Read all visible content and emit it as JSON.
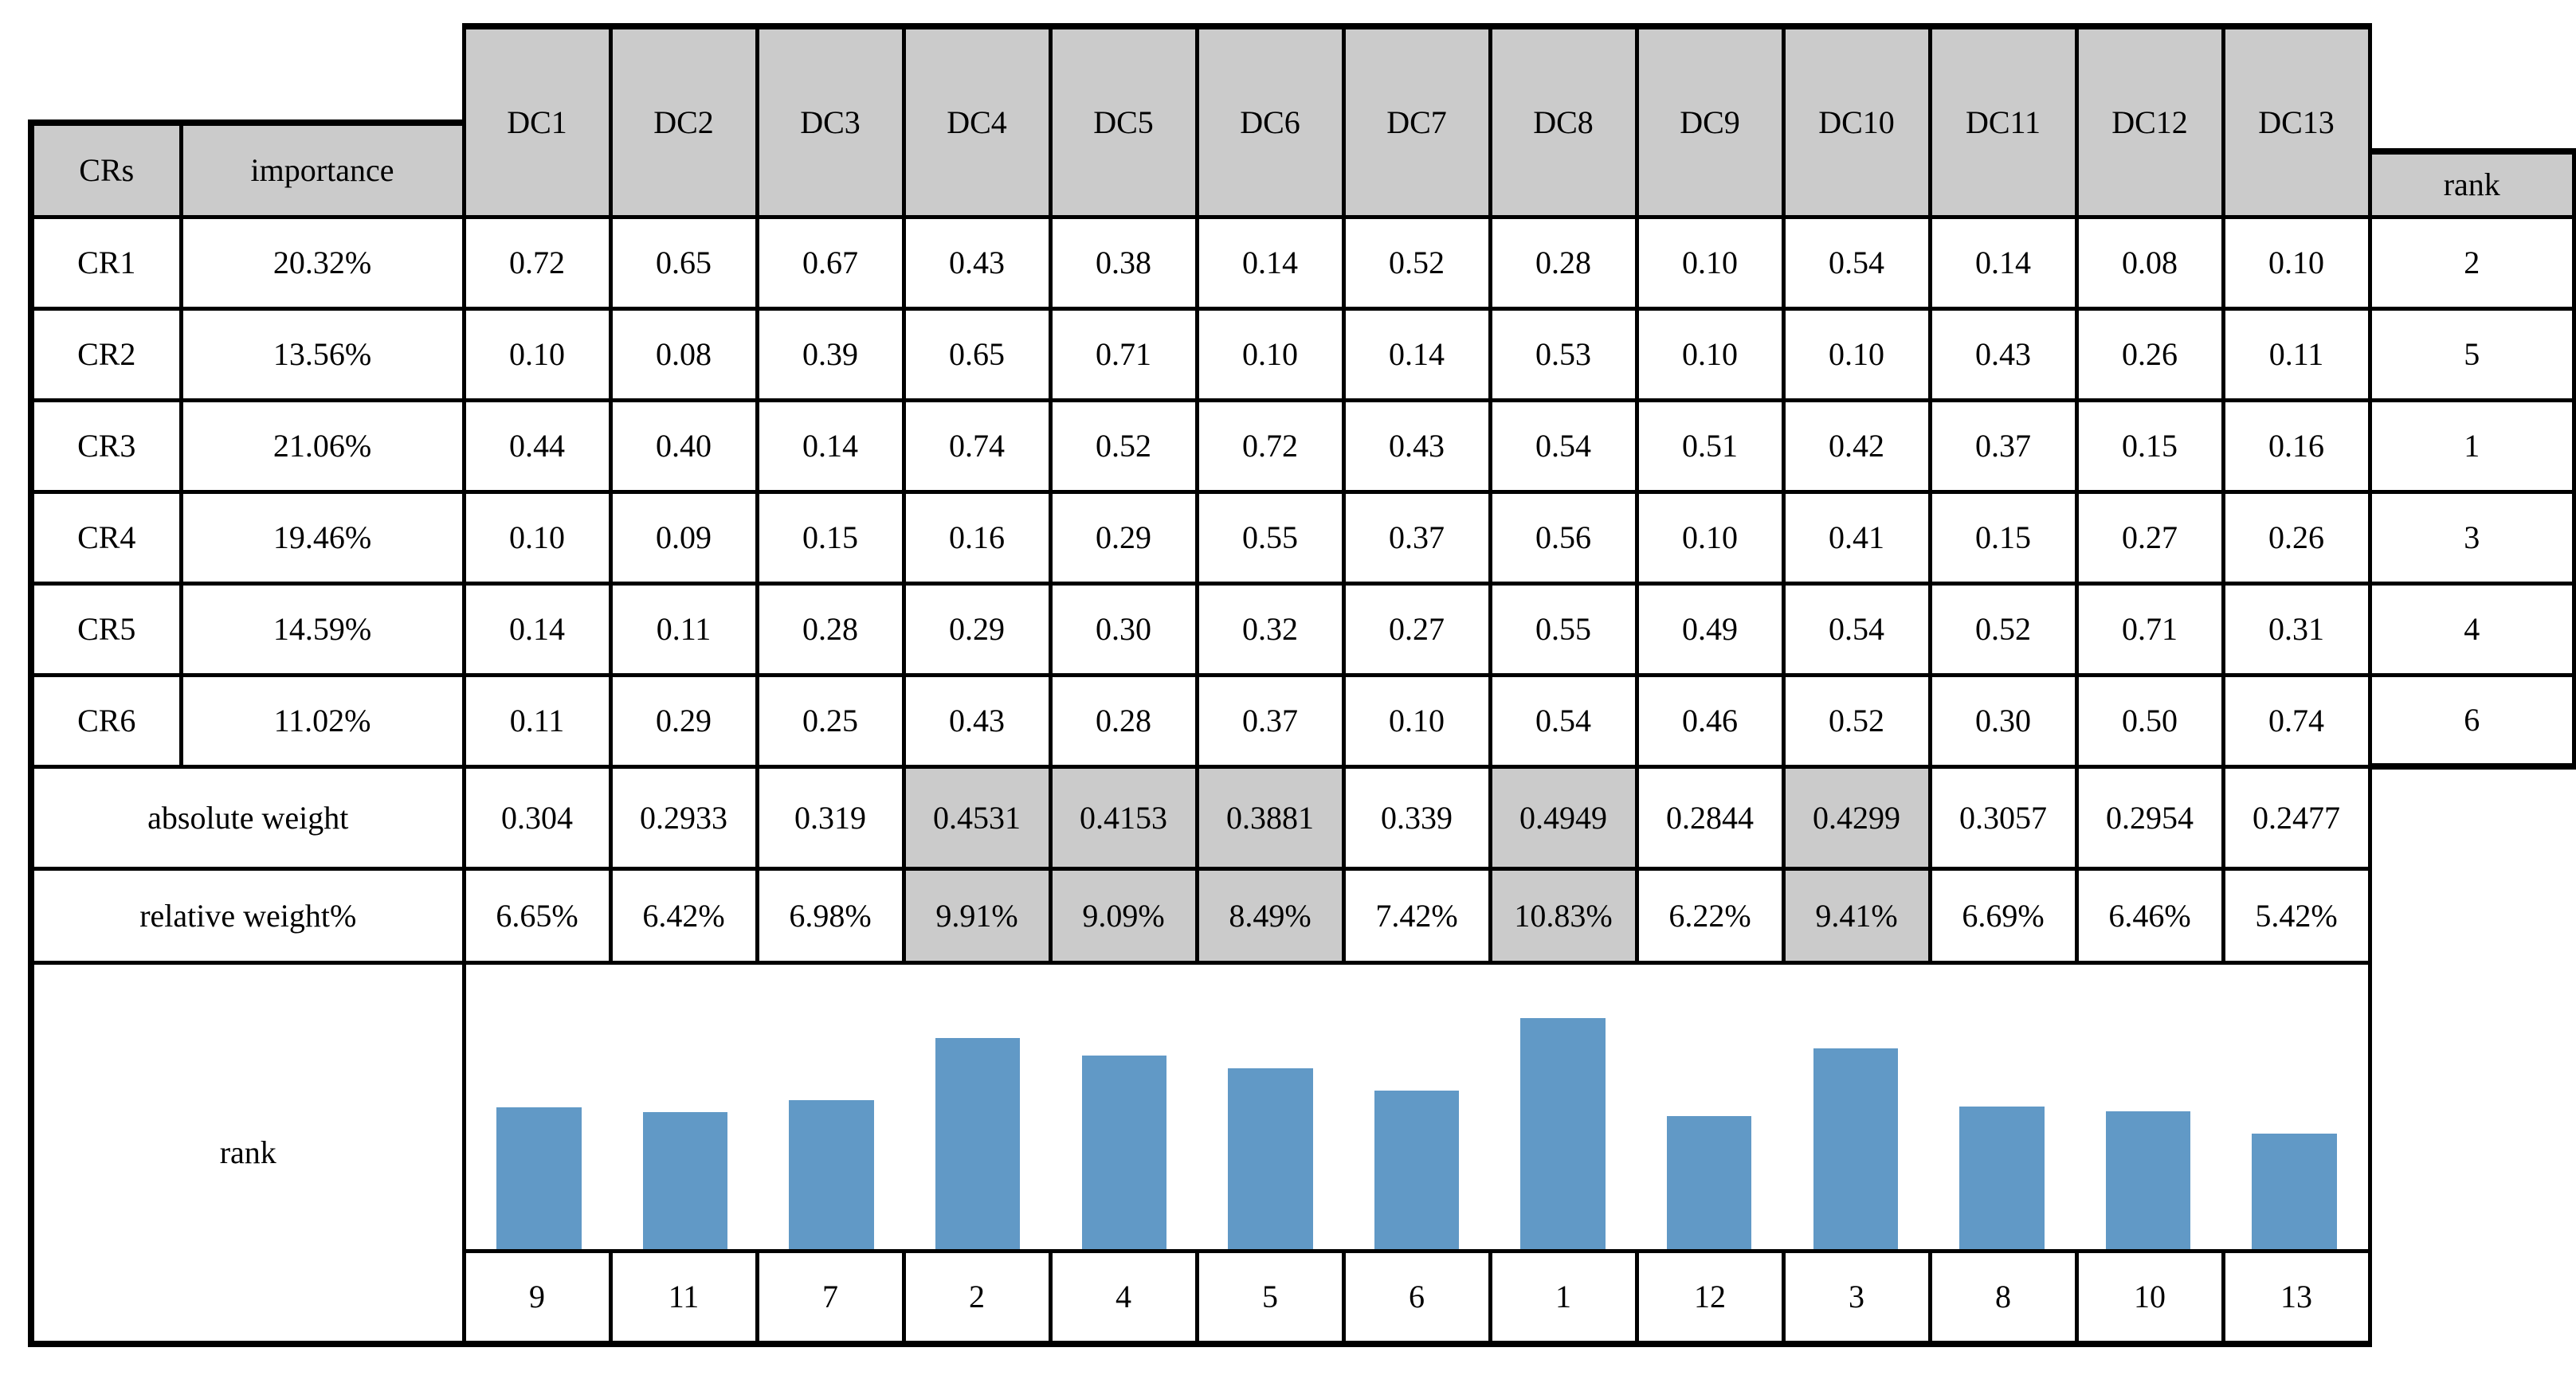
{
  "table": {
    "corner": {
      "crs": "CRs",
      "importance": "importance",
      "rank": "rank"
    },
    "dc_columns": [
      "DC1",
      "DC2",
      "DC3",
      "DC4",
      "DC5",
      "DC6",
      "DC7",
      "DC8",
      "DC9",
      "DC10",
      "DC11",
      "DC12",
      "DC13"
    ],
    "cr_rows": [
      {
        "label": "CR1",
        "importance": "20.32%",
        "values": [
          "0.72",
          "0.65",
          "0.67",
          "0.43",
          "0.38",
          "0.14",
          "0.52",
          "0.28",
          "0.10",
          "0.54",
          "0.14",
          "0.08",
          "0.10"
        ],
        "rank": "2"
      },
      {
        "label": "CR2",
        "importance": "13.56%",
        "values": [
          "0.10",
          "0.08",
          "0.39",
          "0.65",
          "0.71",
          "0.10",
          "0.14",
          "0.53",
          "0.10",
          "0.10",
          "0.43",
          "0.26",
          "0.11"
        ],
        "rank": "5"
      },
      {
        "label": "CR3",
        "importance": "21.06%",
        "values": [
          "0.44",
          "0.40",
          "0.14",
          "0.74",
          "0.52",
          "0.72",
          "0.43",
          "0.54",
          "0.51",
          "0.42",
          "0.37",
          "0.15",
          "0.16"
        ],
        "rank": "1"
      },
      {
        "label": "CR4",
        "importance": "19.46%",
        "values": [
          "0.10",
          "0.09",
          "0.15",
          "0.16",
          "0.29",
          "0.55",
          "0.37",
          "0.56",
          "0.10",
          "0.41",
          "0.15",
          "0.27",
          "0.26"
        ],
        "rank": "3"
      },
      {
        "label": "CR5",
        "importance": "14.59%",
        "values": [
          "0.14",
          "0.11",
          "0.28",
          "0.29",
          "0.30",
          "0.32",
          "0.27",
          "0.55",
          "0.49",
          "0.54",
          "0.52",
          "0.71",
          "0.31"
        ],
        "rank": "4"
      },
      {
        "label": "CR6",
        "importance": "11.02%",
        "values": [
          "0.11",
          "0.29",
          "0.25",
          "0.43",
          "0.28",
          "0.37",
          "0.10",
          "0.54",
          "0.46",
          "0.52",
          "0.30",
          "0.50",
          "0.74"
        ],
        "rank": "6"
      }
    ],
    "absolute_weight": {
      "label": "absolute weight",
      "values": [
        "0.304",
        "0.2933",
        "0.319",
        "0.4531",
        "0.4153",
        "0.3881",
        "0.339",
        "0.4949",
        "0.2844",
        "0.4299",
        "0.3057",
        "0.2954",
        "0.2477"
      ],
      "highlighted": [
        3,
        4,
        5,
        7,
        9
      ]
    },
    "relative_weight": {
      "label": "relative weight%",
      "values": [
        "6.65%",
        "6.42%",
        "6.98%",
        "9.91%",
        "9.09%",
        "8.49%",
        "7.42%",
        "10.83%",
        "6.22%",
        "9.41%",
        "6.69%",
        "6.46%",
        "5.42%"
      ],
      "highlighted": [
        3,
        4,
        5,
        7,
        9
      ]
    },
    "rank_row": {
      "label": "rank",
      "values": [
        "9",
        "11",
        "7",
        "2",
        "4",
        "5",
        "6",
        "1",
        "12",
        "3",
        "8",
        "10",
        "13"
      ]
    }
  },
  "chart_data": {
    "type": "bar",
    "categories": [
      "DC1",
      "DC2",
      "DC3",
      "DC4",
      "DC5",
      "DC6",
      "DC7",
      "DC8",
      "DC9",
      "DC10",
      "DC11",
      "DC12",
      "DC13"
    ],
    "values": [
      6.65,
      6.42,
      6.98,
      9.91,
      9.09,
      8.49,
      7.42,
      10.83,
      6.22,
      9.41,
      6.69,
      6.46,
      5.42
    ],
    "series_name": "relative weight%",
    "title": "",
    "xlabel": "",
    "ylabel": "relative weight%",
    "ylim": [
      0,
      12
    ],
    "grid": false,
    "legend": false,
    "bar_color": "#6199c6"
  },
  "colors": {
    "header_bg": "#cbcbcb",
    "highlight_bg": "#cbcbcb",
    "bar": "#6199c6",
    "border": "#000000"
  }
}
